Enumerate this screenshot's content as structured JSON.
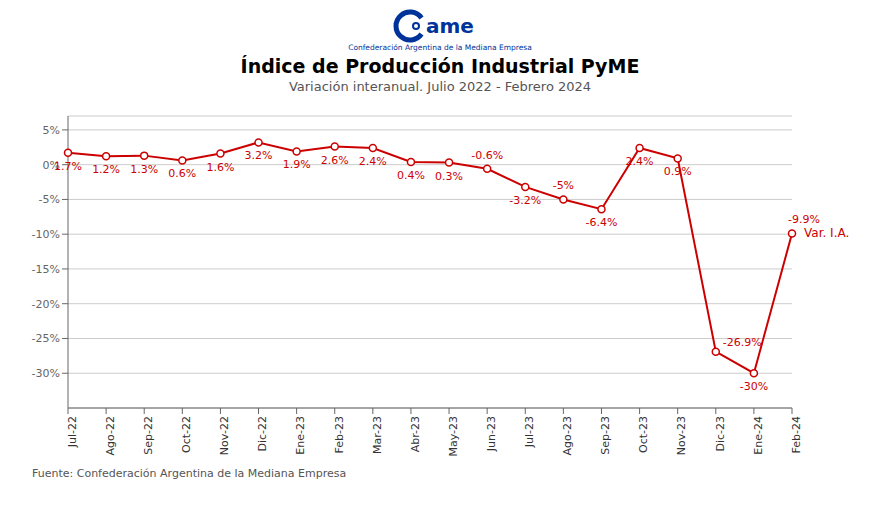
{
  "chart_data": {
    "type": "line",
    "title": "Índice de Producción Industrial PyME",
    "subtitle": "Variación interanual. Julio 2022 - Febrero 2024",
    "source": "Fuente: Confederación Argentina de la Mediana Empresa",
    "annotations": [
      "Var. I.A."
    ],
    "logo_text": "ame",
    "logo_subtitle": "Confederación Argentina de la Mediana Empresa",
    "categories": [
      "Jul-22",
      "Ago-22",
      "Sep-22",
      "Oct-22",
      "Nov-22",
      "Dic-22",
      "Ene-23",
      "Feb-23",
      "Mar-23",
      "Abr-23",
      "May-23",
      "Jun-23",
      "Jul-23",
      "Ago-23",
      "Sep-23",
      "Oct-23",
      "Nov-23",
      "Dic-23",
      "Ene-24",
      "Feb-24"
    ],
    "values": [
      1.7,
      1.2,
      1.3,
      0.6,
      1.6,
      3.2,
      1.9,
      2.6,
      2.4,
      0.4,
      0.3,
      -0.6,
      -3.2,
      -5.0,
      -6.4,
      2.4,
      0.9,
      -26.9,
      -30.0,
      -9.9
    ],
    "value_labels": [
      "1.7%",
      "1.2%",
      "1.3%",
      "0.6%",
      "1.6%",
      "3.2%",
      "1.9%",
      "2.6%",
      "2.4%",
      "0.4%",
      "0.3%",
      "-0.6%",
      "-3.2%",
      "-5%",
      "-6.4%",
      "2.4%",
      "0.9%",
      "-26.9%",
      "-30%",
      "-9.9%"
    ],
    "color": "#cc0000",
    "marker": "circle",
    "ylim": [
      -35,
      7
    ],
    "yticks": [
      {
        "value": 5,
        "label": "5%"
      },
      {
        "value": 0,
        "label": "0%"
      },
      {
        "value": -5,
        "label": "-5%"
      },
      {
        "value": -10,
        "label": "-10%"
      },
      {
        "value": -15,
        "label": "-15%"
      },
      {
        "value": -20,
        "label": "-20%"
      },
      {
        "value": -25,
        "label": "-25%"
      },
      {
        "value": -30,
        "label": "-30%"
      }
    ],
    "grid": true,
    "data_labels": true
  }
}
